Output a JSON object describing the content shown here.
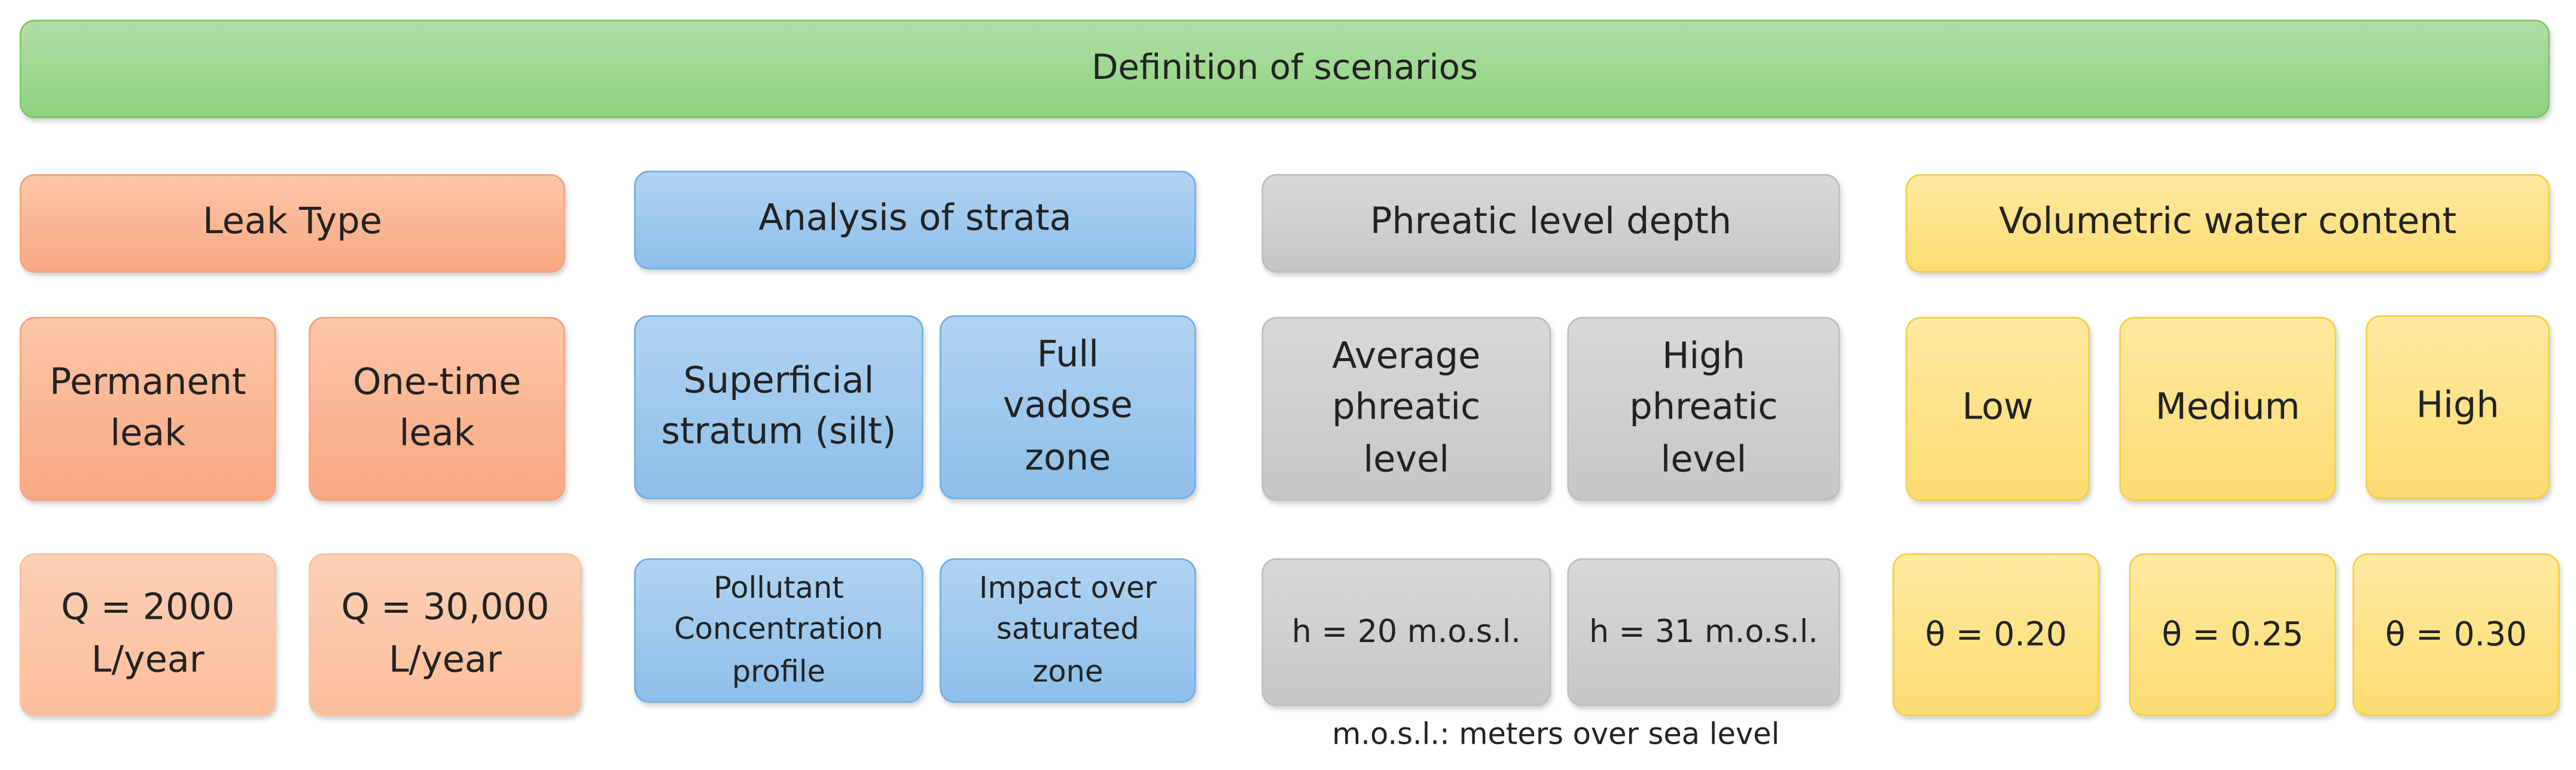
{
  "header": {
    "title": "Definition of scenarios"
  },
  "groups": [
    {
      "title": "Leak Type",
      "options": [
        {
          "lines": [
            "Permanent",
            "leak"
          ]
        },
        {
          "lines": [
            "One-time",
            "leak"
          ]
        }
      ],
      "values": [
        {
          "lines": [
            "Q = 2000",
            "L/year"
          ]
        },
        {
          "lines": [
            "Q = 30,000",
            "L/year"
          ]
        }
      ]
    },
    {
      "title": "Analysis of strata",
      "options": [
        {
          "lines": [
            "Superficial",
            "stratum (silt)"
          ]
        },
        {
          "lines": [
            "Full",
            "vadose",
            "zone"
          ]
        }
      ],
      "values": [
        {
          "lines": [
            "Pollutant",
            "Concentration",
            "profile"
          ]
        },
        {
          "lines": [
            "Impact over",
            "saturated",
            "zone"
          ]
        }
      ]
    },
    {
      "title": "Phreatic level depth",
      "options": [
        {
          "lines": [
            "Average",
            "phreatic",
            "level"
          ]
        },
        {
          "lines": [
            "High",
            "phreatic",
            "level"
          ]
        }
      ],
      "values": [
        {
          "lines": [
            "h = 20 m.o.s.l."
          ]
        },
        {
          "lines": [
            "h = 31 m.o.s.l."
          ]
        }
      ]
    },
    {
      "title": "Volumetric water content",
      "options": [
        {
          "lines": [
            "Low"
          ]
        },
        {
          "lines": [
            "Medium"
          ]
        },
        {
          "lines": [
            "High"
          ]
        }
      ],
      "values": [
        {
          "lines": [
            "θ = 0.20"
          ]
        },
        {
          "lines": [
            "θ = 0.25"
          ]
        },
        {
          "lines": [
            "θ = 0.30"
          ]
        }
      ]
    }
  ],
  "footnote": "m.o.s.l.: meters over sea level"
}
